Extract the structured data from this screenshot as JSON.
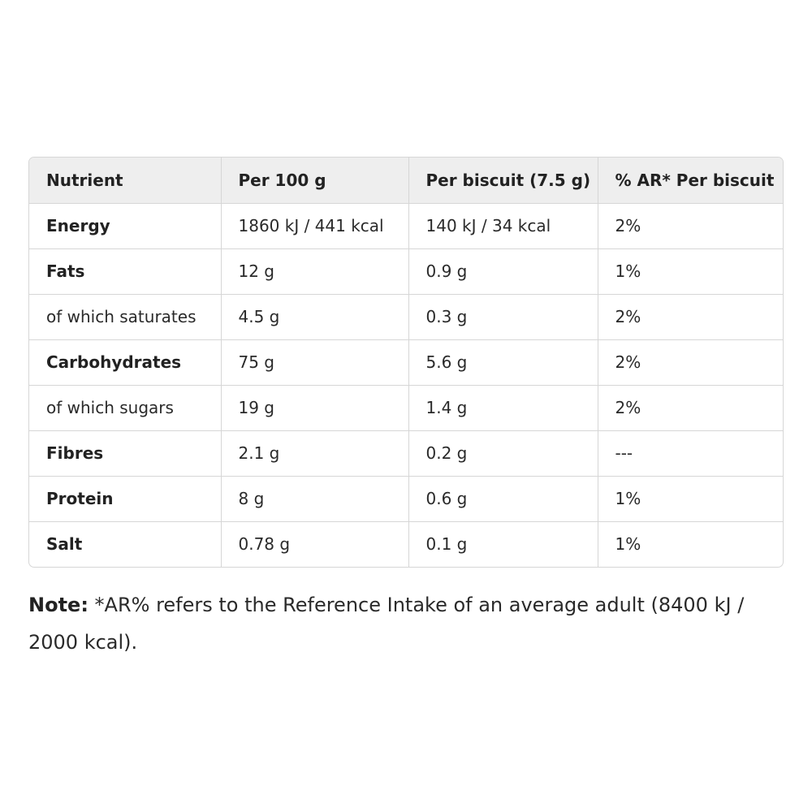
{
  "table": {
    "headers": [
      "Nutrient",
      "Per 100 g",
      "Per biscuit (7.5 g)",
      "% AR* Per biscuit"
    ],
    "rows": [
      {
        "nutrient": "Energy",
        "bold": true,
        "per100": "1860 kJ / 441 kcal",
        "perBiscuit": "140 kJ / 34 kcal",
        "ar": "2%"
      },
      {
        "nutrient": "Fats",
        "bold": true,
        "per100": "12 g",
        "perBiscuit": "0.9 g",
        "ar": "1%"
      },
      {
        "nutrient": "of which saturates",
        "bold": false,
        "per100": "4.5 g",
        "perBiscuit": "0.3 g",
        "ar": "2%"
      },
      {
        "nutrient": "Carbohydrates",
        "bold": true,
        "per100": "75 g",
        "perBiscuit": "5.6 g",
        "ar": "2%"
      },
      {
        "nutrient": "of which sugars",
        "bold": false,
        "per100": "19 g",
        "perBiscuit": "1.4 g",
        "ar": "2%"
      },
      {
        "nutrient": "Fibres",
        "bold": true,
        "per100": "2.1 g",
        "perBiscuit": "0.2 g",
        "ar": "---"
      },
      {
        "nutrient": "Protein",
        "bold": true,
        "per100": "8 g",
        "perBiscuit": "0.6 g",
        "ar": "1%"
      },
      {
        "nutrient": "Salt",
        "bold": true,
        "per100": "0.78 g",
        "perBiscuit": "0.1 g",
        "ar": "1%"
      }
    ]
  },
  "note": {
    "label": "Note:",
    "text": " *AR% refers to the Reference Intake of an average adult (8400 kJ / 2000 kcal)."
  },
  "colors": {
    "header_bg": "#eeeeee",
    "border": "#d6d6d6",
    "text": "#222222"
  }
}
